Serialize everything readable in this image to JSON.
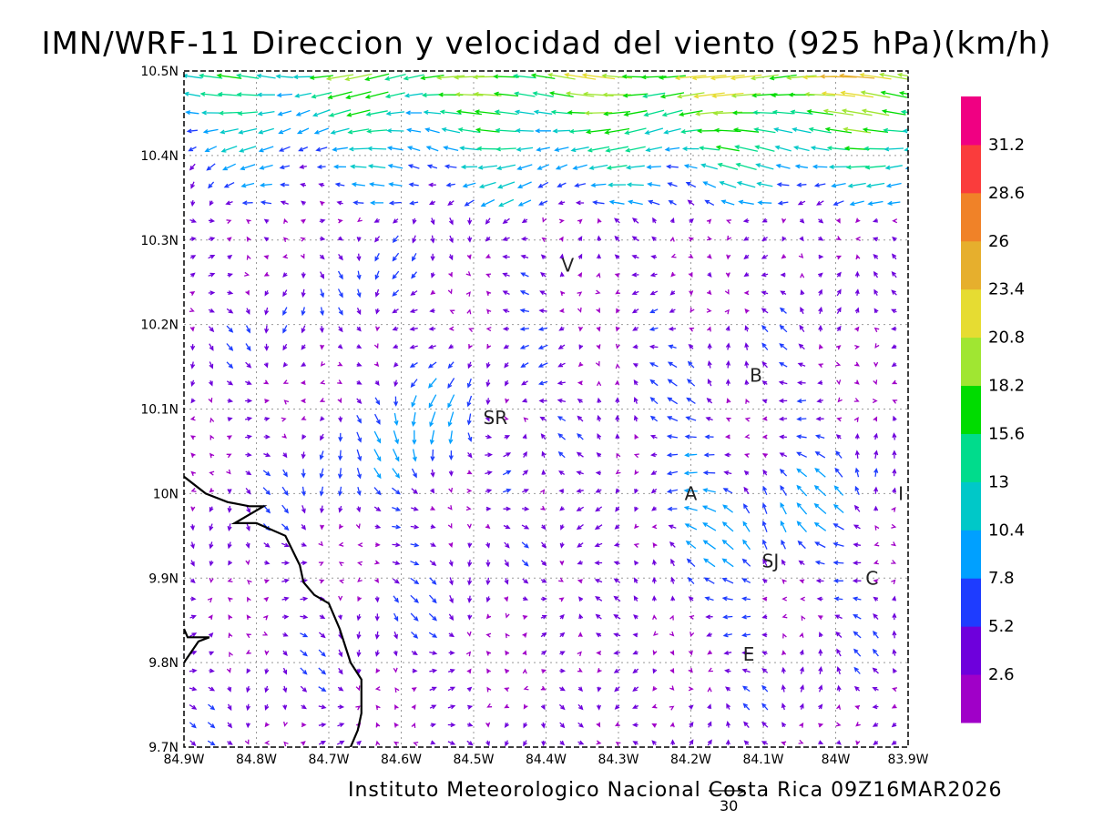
{
  "title": "IMN/WRF-11 Direccion y velocidad del viento (925 hPa)(km/h)",
  "credit": "Instituto Meteorologico Nacional Costa Rica 09Z16MAR2026",
  "reference_vector": {
    "label": "30",
    "value": 30
  },
  "map": {
    "lon_range": [
      -84.9,
      -83.9
    ],
    "lat_range": [
      9.7,
      10.5
    ],
    "grid_lines": "dotted",
    "lon_ticks": [
      {
        "value": -84.9,
        "label": "84.9W"
      },
      {
        "value": -84.8,
        "label": "84.8W"
      },
      {
        "value": -84.7,
        "label": "84.7W"
      },
      {
        "value": -84.6,
        "label": "84.6W"
      },
      {
        "value": -84.5,
        "label": "84.5W"
      },
      {
        "value": -84.4,
        "label": "84.4W"
      },
      {
        "value": -84.3,
        "label": "84.3W"
      },
      {
        "value": -84.2,
        "label": "84.2W"
      },
      {
        "value": -84.1,
        "label": "84.1W"
      },
      {
        "value": -84.0,
        "label": "84W"
      },
      {
        "value": -83.9,
        "label": "83.9W"
      }
    ],
    "lat_ticks": [
      {
        "value": 10.5,
        "label": "10.5N"
      },
      {
        "value": 10.4,
        "label": "10.4N"
      },
      {
        "value": 10.3,
        "label": "10.3N"
      },
      {
        "value": 10.2,
        "label": "10.2N"
      },
      {
        "value": 10.1,
        "label": "10.1N"
      },
      {
        "value": 10.0,
        "label": "10N"
      },
      {
        "value": 9.9,
        "label": "9.9N"
      },
      {
        "value": 9.8,
        "label": "9.8N"
      },
      {
        "value": 9.7,
        "label": "9.7N"
      }
    ],
    "places": [
      {
        "label": "V",
        "lon": -84.37,
        "lat": 10.27
      },
      {
        "label": "B",
        "lon": -84.11,
        "lat": 10.14
      },
      {
        "label": "SR",
        "lon": -84.47,
        "lat": 10.09
      },
      {
        "label": "A",
        "lon": -84.2,
        "lat": 10.0
      },
      {
        "label": "I",
        "lon": -83.91,
        "lat": 10.0
      },
      {
        "label": "SJ",
        "lon": -84.09,
        "lat": 9.92
      },
      {
        "label": "C",
        "lon": -83.95,
        "lat": 9.9
      },
      {
        "label": "E",
        "lon": -84.12,
        "lat": 9.81
      }
    ],
    "coastline": [
      [
        [
          -84.9,
          10.02
        ],
        [
          -84.87,
          10.0
        ],
        [
          -84.84,
          9.99
        ],
        [
          -84.81,
          9.985
        ],
        [
          -84.79,
          9.985
        ],
        [
          -84.83,
          9.965
        ],
        [
          -84.8,
          9.965
        ],
        [
          -84.76,
          9.95
        ],
        [
          -84.74,
          9.915
        ],
        [
          -84.735,
          9.895
        ],
        [
          -84.72,
          9.88
        ],
        [
          -84.7,
          9.87
        ],
        [
          -84.685,
          9.84
        ],
        [
          -84.67,
          9.8
        ],
        [
          -84.655,
          9.78
        ],
        [
          -84.655,
          9.74
        ],
        [
          -84.66,
          9.72
        ],
        [
          -84.67,
          9.7
        ]
      ],
      [
        [
          -84.9,
          9.8
        ],
        [
          -84.88,
          9.825
        ],
        [
          -84.865,
          9.83
        ],
        [
          -84.895,
          9.83
        ],
        [
          -84.9,
          9.84
        ]
      ]
    ]
  },
  "colorbar": {
    "colors": [
      "#a000c8",
      "#6e00dc",
      "#1e3cff",
      "#00a0ff",
      "#00c8c8",
      "#00dc8c",
      "#00dc00",
      "#a0e632",
      "#e6dc32",
      "#e6af2d",
      "#f08228",
      "#fa3c3c",
      "#f00082"
    ],
    "labels": [
      "2.6",
      "5.2",
      "7.8",
      "10.4",
      "13",
      "15.6",
      "18.2",
      "20.8",
      "23.4",
      "26",
      "28.6",
      "31.2"
    ]
  }
}
